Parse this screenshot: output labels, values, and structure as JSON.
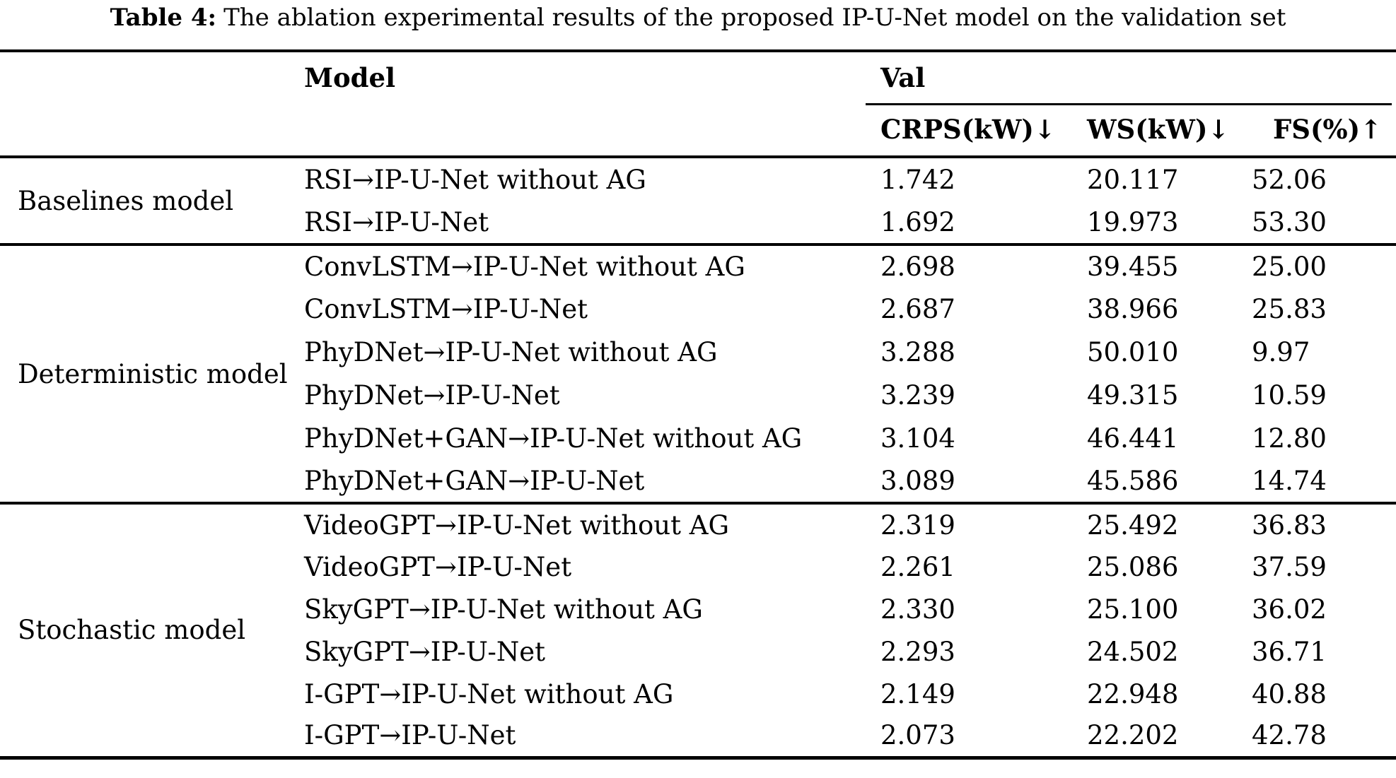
{
  "caption": {
    "label": "Table 4:",
    "text": "The ablation experimental results of the proposed IP-U-Net model on the validation set"
  },
  "header": {
    "model": "Model",
    "val": "Val",
    "metrics": [
      "CRPS(kW)↓",
      "WS(kW)↓",
      "FS(%)↑"
    ]
  },
  "sections": [
    {
      "group": "Baselines model",
      "rows": [
        {
          "model": "RSI→IP-U-Net without AG",
          "crps": "1.742",
          "ws": "20.117",
          "fs": "52.06"
        },
        {
          "model": "RSI→IP-U-Net",
          "crps": "1.692",
          "ws": "19.973",
          "fs": "53.30"
        }
      ]
    },
    {
      "group": "Deterministic model",
      "rows": [
        {
          "model": "ConvLSTM→IP-U-Net without AG",
          "crps": "2.698",
          "ws": "39.455",
          "fs": "25.00"
        },
        {
          "model": "ConvLSTM→IP-U-Net",
          "crps": "2.687",
          "ws": "38.966",
          "fs": "25.83"
        },
        {
          "model": "PhyDNet→IP-U-Net without AG",
          "crps": "3.288",
          "ws": "50.010",
          "fs": "9.97"
        },
        {
          "model": "PhyDNet→IP-U-Net",
          "crps": "3.239",
          "ws": "49.315",
          "fs": "10.59"
        },
        {
          "model": "PhyDNet+GAN→IP-U-Net without AG",
          "crps": "3.104",
          "ws": "46.441",
          "fs": "12.80"
        },
        {
          "model": "PhyDNet+GAN→IP-U-Net",
          "crps": "3.089",
          "ws": "45.586",
          "fs": "14.74"
        }
      ]
    },
    {
      "group": "Stochastic model",
      "rows": [
        {
          "model": "VideoGPT→IP-U-Net without AG",
          "crps": "2.319",
          "ws": "25.492",
          "fs": "36.83"
        },
        {
          "model": "VideoGPT→IP-U-Net",
          "crps": "2.261",
          "ws": "25.086",
          "fs": "37.59"
        },
        {
          "model": "SkyGPT→IP-U-Net without AG",
          "crps": "2.330",
          "ws": "25.100",
          "fs": "36.02"
        },
        {
          "model": "SkyGPT→IP-U-Net",
          "crps": "2.293",
          "ws": "24.502",
          "fs": "36.71"
        },
        {
          "model": "I-GPT→IP-U-Net without AG",
          "crps": "2.149",
          "ws": "22.948",
          "fs": "40.88"
        },
        {
          "model": "I-GPT→IP-U-Net",
          "crps": "2.073",
          "ws": "22.202",
          "fs": "42.78"
        }
      ]
    }
  ]
}
